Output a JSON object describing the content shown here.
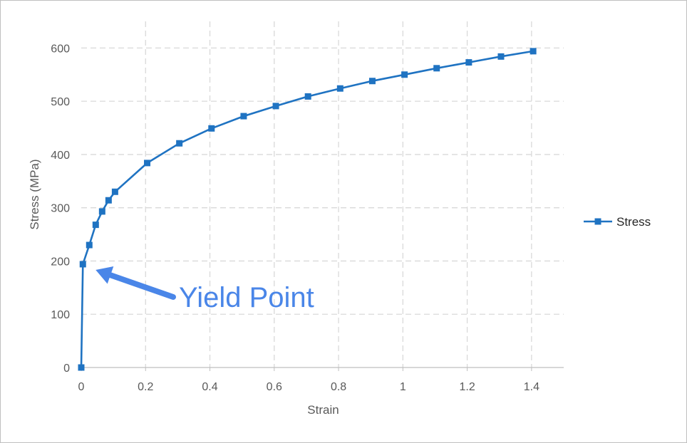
{
  "chart_data": {
    "type": "line",
    "title": "",
    "xlabel": "Strain",
    "ylabel": "Stress (MPa)",
    "xlim": [
      0,
      1.5
    ],
    "ylim": [
      0,
      650
    ],
    "x_ticks": [
      0,
      0.2,
      0.4,
      0.6,
      0.8,
      1,
      1.2,
      1.4
    ],
    "x_tick_labels": [
      "0",
      "0.2",
      "0.4",
      "0.6",
      "0.8",
      "1",
      "1.2",
      "1.4"
    ],
    "y_ticks": [
      0,
      100,
      200,
      300,
      400,
      500,
      600
    ],
    "y_tick_labels": [
      "0",
      "100",
      "200",
      "300",
      "400",
      "500",
      "600"
    ],
    "grid": true,
    "legend_position": "right",
    "series": [
      {
        "name": "Stress",
        "color": "#1f73c2",
        "marker": "square",
        "x": [
          0,
          0.005,
          0.025,
          0.045,
          0.065,
          0.085,
          0.105,
          0.205,
          0.305,
          0.405,
          0.505,
          0.605,
          0.705,
          0.805,
          0.905,
          1.005,
          1.105,
          1.205,
          1.305,
          1.405
        ],
        "y": [
          0,
          194,
          230,
          268,
          293,
          314,
          330,
          384,
          421,
          449,
          472,
          491,
          509,
          524,
          538,
          550,
          562,
          573,
          584,
          594
        ]
      }
    ],
    "annotations": [
      {
        "text": "Yield Point",
        "points_to": {
          "x": 0.005,
          "y": 194
        },
        "color": "#4a86e8"
      }
    ]
  }
}
